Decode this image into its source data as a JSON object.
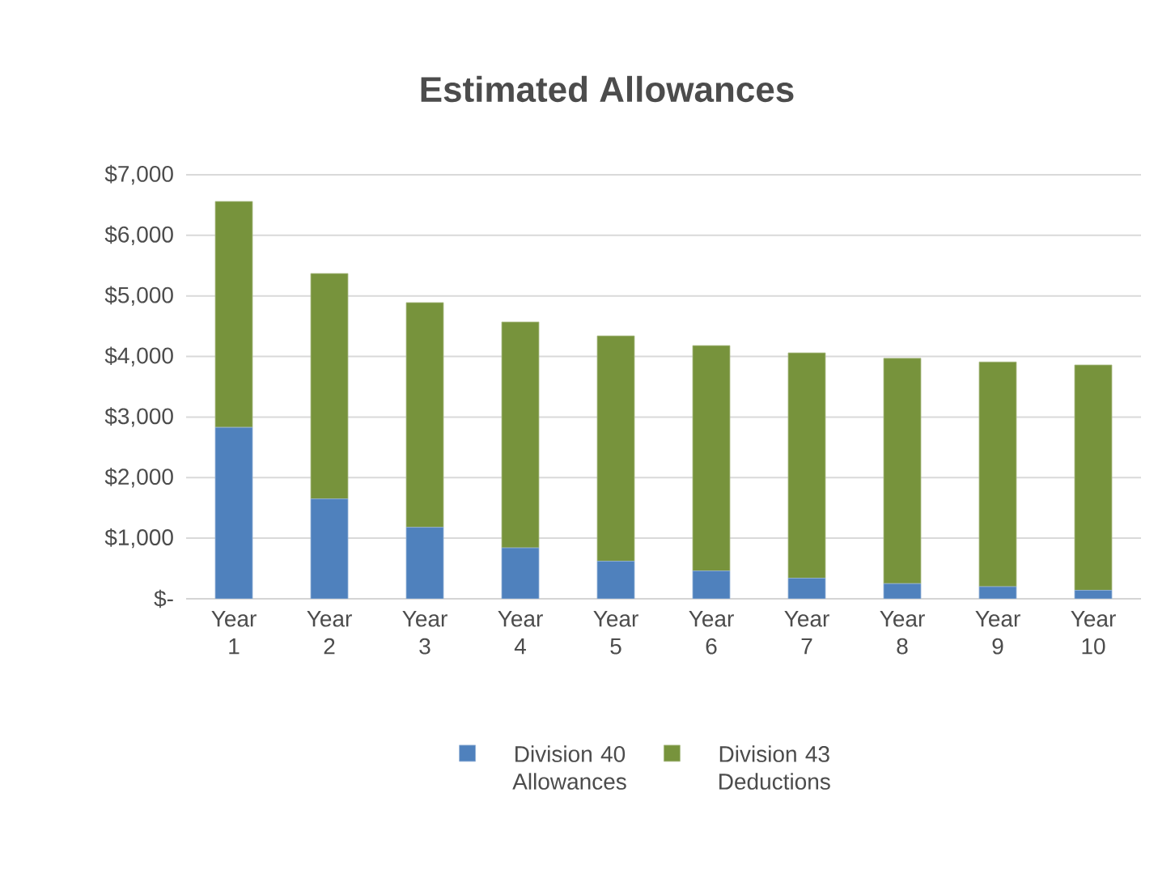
{
  "chart_data": {
    "type": "bar",
    "stacked": true,
    "title": "Estimated Allowances",
    "categories": [
      "Year 1",
      "Year 2",
      "Year 3",
      "Year 4",
      "Year 5",
      "Year 6",
      "Year 7",
      "Year 8",
      "Year 9",
      "Year 10"
    ],
    "series": [
      {
        "name": "Division 40 Allowances",
        "color": "#4f81bd",
        "values": [
          2830,
          1650,
          1180,
          840,
          620,
          460,
          340,
          250,
          200,
          140
        ]
      },
      {
        "name": "Division 43 Deductions",
        "color": "#77933c",
        "values": [
          3730,
          3720,
          3710,
          3730,
          3720,
          3720,
          3720,
          3720,
          3710,
          3720
        ]
      }
    ],
    "ylim": [
      0,
      7000
    ],
    "yticks": [
      {
        "value": 0,
        "label": "$-"
      },
      {
        "value": 1000,
        "label": "$1,000"
      },
      {
        "value": 2000,
        "label": "$2,000"
      },
      {
        "value": 3000,
        "label": "$3,000"
      },
      {
        "value": 4000,
        "label": "$4,000"
      },
      {
        "value": 5000,
        "label": "$5,000"
      },
      {
        "value": 6000,
        "label": "$6,000"
      },
      {
        "value": 7000,
        "label": "$7,000"
      }
    ],
    "grid": "y",
    "legend": "bottom"
  }
}
